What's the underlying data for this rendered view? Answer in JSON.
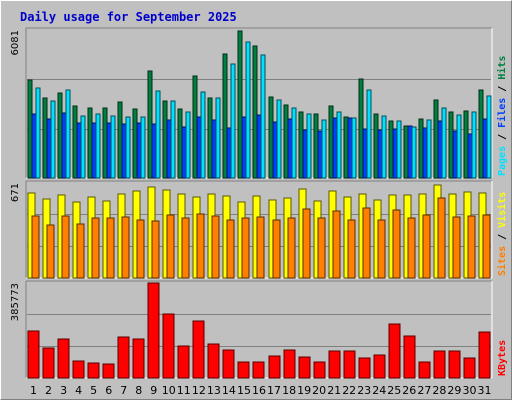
{
  "chart_data": {
    "type": "bar",
    "title": "Daily usage for September 2025",
    "days": [
      "1",
      "2",
      "3",
      "4",
      "5",
      "6",
      "7",
      "8",
      "9",
      "10",
      "11",
      "12",
      "13",
      "14",
      "15",
      "16",
      "17",
      "18",
      "19",
      "20",
      "21",
      "22",
      "23",
      "24",
      "25",
      "26",
      "27",
      "28",
      "29",
      "30",
      "31"
    ],
    "weekend_days": [
      "6",
      "7",
      "13",
      "14",
      "20",
      "21",
      "27",
      "28"
    ],
    "panels": [
      {
        "id": "hits-files-pages",
        "ymax_label": "6081",
        "ymax": 6081,
        "legend": [
          {
            "text": "Pages",
            "color": "#00e0ff"
          },
          {
            "text": " / ",
            "color": "#000000"
          },
          {
            "text": "Files",
            "color": "#0040ff"
          },
          {
            "text": " / ",
            "color": "#000000"
          },
          {
            "text": "Hits",
            "color": "#008040"
          }
        ],
        "series": [
          {
            "color": "#008040",
            "values": [
              4030,
              3270,
              3510,
              2960,
              2860,
              2860,
              3120,
              2820,
              4380,
              3160,
              2840,
              4180,
              3300,
              5110,
              6030,
              5410,
              3320,
              3000,
              2710,
              2650,
              2970,
              2520,
              4070,
              2650,
              2330,
              2130,
              2440,
              3220,
              2700,
              2750,
              3610
            ]
          },
          {
            "color": "#0040ff",
            "values": [
              2650,
              2440,
              2680,
              2240,
              2260,
              2240,
              2210,
              2240,
              2200,
              2400,
              2110,
              2520,
              2380,
              2050,
              2520,
              2580,
              2300,
              2430,
              1990,
              1920,
              2460,
              2460,
              2030,
              1960,
              2030,
              2150,
              2050,
              2350,
              1950,
              1810,
              2440
            ]
          },
          {
            "color": "#00e0ff",
            "values": [
              3680,
              3150,
              3600,
              2530,
              2620,
              2550,
              2510,
              2500,
              3580,
              3160,
              2720,
              3530,
              3300,
              4700,
              5600,
              5040,
              3200,
              2880,
              2620,
              2380,
              2700,
              2480,
              3600,
              2540,
              2330,
              2080,
              2400,
              2880,
              2600,
              2710,
              3370
            ]
          }
        ]
      },
      {
        "id": "visits-sites",
        "ymax_label": "671",
        "ymax": 671,
        "legend": [
          {
            "text": "Sites",
            "color": "#ff8000"
          },
          {
            "text": " / ",
            "color": "#000000"
          },
          {
            "text": "Visits",
            "color": "#ffff00"
          }
        ],
        "series": [
          {
            "color": "#ffff00",
            "values": [
              597,
              557,
              589,
              540,
              575,
              544,
              592,
              614,
              646,
              624,
              590,
              575,
              594,
              579,
              537,
              577,
              554,
              567,
              630,
              545,
              618,
              573,
              590,
              548,
              584,
              585,
              590,
              657,
              594,
              610,
              597
            ]
          },
          {
            "color": "#ff8000",
            "values": [
              436,
              377,
              437,
              382,
              427,
              426,
              432,
              409,
              402,
              445,
              427,
              453,
              436,
              409,
              421,
              433,
              413,
              425,
              485,
              424,
              476,
              407,
              495,
              409,
              480,
              426,
              448,
              563,
              434,
              437,
              447
            ]
          }
        ]
      },
      {
        "id": "kbytes",
        "ymax_label": "385773",
        "ymax": 385773,
        "legend": [
          {
            "text": "KBytes",
            "color": "#ff0000"
          }
        ],
        "series": [
          {
            "color": "#ff0000",
            "values": [
              190000,
              120000,
              160000,
              70000,
              60000,
              55000,
              165000,
              160000,
              385773,
              258000,
              130000,
              230000,
              140000,
              115000,
              65000,
              65000,
              90000,
              115000,
              85000,
              65000,
              110000,
              110000,
              80000,
              95000,
              220000,
              170000,
              65000,
              110000,
              110000,
              80000,
              185000
            ]
          }
        ]
      }
    ]
  }
}
